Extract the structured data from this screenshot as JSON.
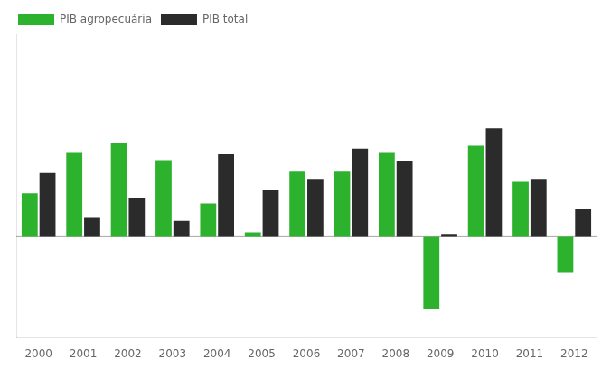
{
  "chart_data": {
    "type": "bar",
    "categories": [
      "2000",
      "2001",
      "2002",
      "2003",
      "2004",
      "2005",
      "2006",
      "2007",
      "2008",
      "2009",
      "2010",
      "2011",
      "2012"
    ],
    "series": [
      {
        "name": "PIB agropecuária",
        "color": "#2db22d",
        "values": [
          3.0,
          5.8,
          6.5,
          5.3,
          2.3,
          0.3,
          4.5,
          4.5,
          5.8,
          -5.0,
          6.3,
          3.8,
          -2.5
        ]
      },
      {
        "name": "PIB total",
        "color": "#2b2b2b",
        "values": [
          4.4,
          1.3,
          2.7,
          1.1,
          5.7,
          3.2,
          4.0,
          6.1,
          5.2,
          0.2,
          7.5,
          4.0,
          1.9
        ]
      }
    ],
    "ylim": [
      -7.0,
      14.0
    ],
    "tick_labels": "x",
    "grid": false,
    "legend": "upper left"
  }
}
